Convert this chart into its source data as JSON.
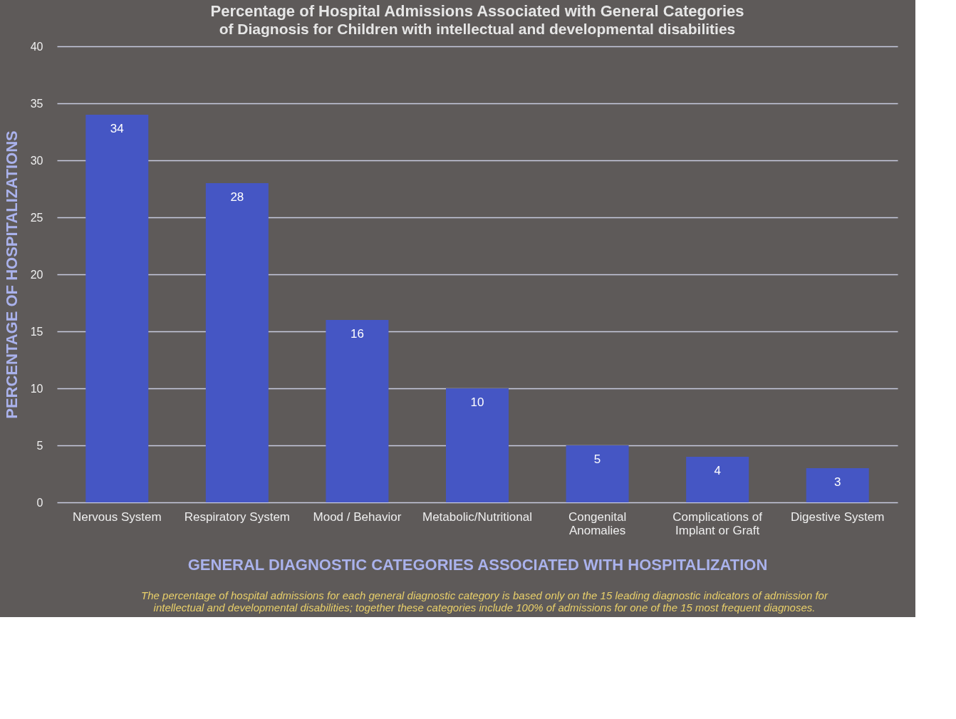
{
  "chart_data": {
    "type": "bar",
    "title": "Percentage of Hospital Admissions Associated with General Categories",
    "subtitle": "of Diagnosis for Children with intellectual and developmental disabilities",
    "xlabel": "GENERAL DIAGNOSTIC CATEGORIES ASSOCIATED WITH HOSPITALIZATION",
    "ylabel": "PERCENTAGE OF HOSPITALIZATIONS",
    "categories": [
      "Nervous System",
      "Respiratory System",
      "Mood / Behavior",
      "Metabolic/Nutritional",
      "Congenital\nAnomalies",
      "Complications of\nImplant or Graft",
      "Digestive System"
    ],
    "values": [
      34,
      28,
      16,
      10,
      5,
      4,
      3
    ],
    "color": "#4556c4",
    "ylim": [
      0,
      40
    ],
    "yticks": [
      0,
      5,
      10,
      15,
      20,
      25,
      30,
      35,
      40
    ],
    "grid": "y",
    "data_labels": true,
    "annotations": [
      "The percentage of hospital admissions for each general diagnostic category is based only on the 15 leading diagnostic indicators of admission for\nintellectual and developmental disabilities; together these categories include 100% of admissions for one of the 15 most frequent diagnoses."
    ]
  }
}
